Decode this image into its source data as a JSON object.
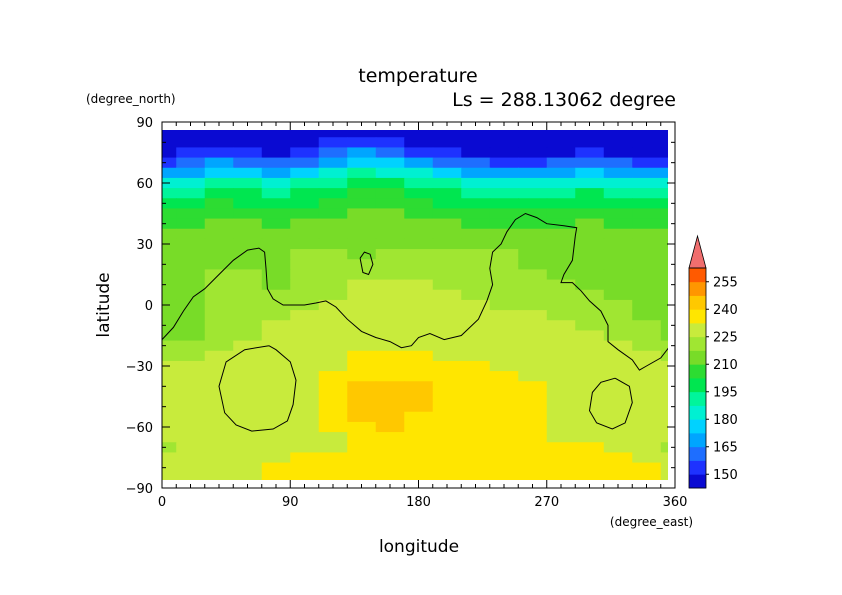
{
  "chart_data": {
    "type": "heatmap",
    "title": "temperature",
    "subtitle": "Ls = 288.13062 degree",
    "xlabel": "longitude",
    "ylabel": "latitude",
    "x_unit": "(degree_east)",
    "y_unit": "(degree_north)",
    "xlim": [
      0,
      360
    ],
    "ylim": [
      -90,
      90
    ],
    "x_ticks": [
      0,
      90,
      180,
      270,
      360
    ],
    "y_ticks": [
      90,
      60,
      30,
      0,
      -30,
      -60,
      -90
    ],
    "grid": false,
    "colorbar": {
      "levels": [
        142.5,
        150,
        157.5,
        165,
        172.5,
        180,
        187.5,
        195,
        202.5,
        210,
        217.5,
        225,
        232.5,
        240,
        247.5,
        255,
        262.5
      ],
      "tick_labels": [
        150,
        165,
        180,
        195,
        210,
        225,
        240,
        255
      ],
      "colors": [
        "#0a0ad2",
        "#1e32ff",
        "#1e6eff",
        "#00a5ff",
        "#00d2ff",
        "#00f0d2",
        "#00f59b",
        "#00e650",
        "#2ddc32",
        "#78dc28",
        "#a0e632",
        "#c8eb3c",
        "#ffe600",
        "#ffc800",
        "#ff9600",
        "#ff5a00",
        "#ff2800"
      ],
      "over_color": "#f06e6e"
    },
    "lat_rows": [
      85,
      80,
      75,
      70,
      65,
      60,
      55,
      50,
      45,
      40,
      35,
      30,
      25,
      20,
      15,
      10,
      5,
      0,
      -5,
      -10,
      -15,
      -20,
      -25,
      -30,
      -35,
      -40,
      -45,
      -50,
      -55,
      -60,
      -65,
      -70,
      -75,
      -80,
      -85
    ],
    "lon_cols": [
      0,
      20,
      40,
      60,
      80,
      100,
      120,
      140,
      160,
      180,
      200,
      220,
      240,
      260,
      280,
      300,
      320,
      340,
      360
    ],
    "values": [
      [
        143,
        143,
        143,
        143,
        143,
        143,
        143,
        143,
        143,
        143,
        143,
        143,
        143,
        143,
        143,
        143,
        143,
        143,
        143
      ],
      [
        143,
        143,
        143,
        143,
        143,
        143,
        150,
        152,
        150,
        143,
        143,
        143,
        143,
        143,
        143,
        143,
        143,
        143,
        143
      ],
      [
        146,
        150,
        153,
        150,
        146,
        150,
        158,
        165,
        163,
        155,
        150,
        146,
        143,
        143,
        146,
        150,
        146,
        143,
        146
      ],
      [
        155,
        160,
        165,
        163,
        158,
        163,
        170,
        178,
        175,
        168,
        162,
        158,
        155,
        155,
        158,
        162,
        158,
        155,
        155
      ],
      [
        168,
        172,
        178,
        175,
        170,
        175,
        182,
        188,
        186,
        180,
        175,
        170,
        168,
        168,
        170,
        175,
        172,
        168,
        168
      ],
      [
        180,
        185,
        190,
        188,
        183,
        188,
        194,
        198,
        196,
        192,
        188,
        184,
        180,
        180,
        183,
        187,
        184,
        180,
        180
      ],
      [
        190,
        194,
        198,
        196,
        192,
        196,
        200,
        204,
        203,
        200,
        196,
        193,
        190,
        190,
        192,
        196,
        194,
        190,
        190
      ],
      [
        198,
        200,
        204,
        202,
        199,
        202,
        205,
        208,
        207,
        205,
        202,
        200,
        198,
        198,
        200,
        202,
        200,
        198,
        198
      ],
      [
        203,
        205,
        207,
        206,
        204,
        206,
        208,
        210,
        210,
        208,
        206,
        205,
        203,
        203,
        205,
        206,
        205,
        203,
        203
      ],
      [
        208,
        209,
        211,
        210,
        209,
        210,
        212,
        213,
        213,
        212,
        210,
        209,
        208,
        208,
        209,
        210,
        209,
        208,
        208
      ],
      [
        211,
        212,
        213,
        213,
        212,
        213,
        214,
        215,
        215,
        214,
        213,
        212,
        211,
        211,
        212,
        213,
        212,
        211,
        211
      ],
      [
        213,
        214,
        215,
        215,
        214,
        215,
        216,
        217,
        217,
        216,
        215,
        214,
        213,
        213,
        214,
        215,
        214,
        213,
        213
      ],
      [
        215,
        215,
        216,
        216,
        215,
        219,
        220,
        216,
        222,
        221,
        220,
        219,
        218,
        215,
        215,
        216,
        215,
        215,
        215
      ],
      [
        215,
        215,
        216,
        216,
        215,
        219,
        221,
        222,
        223,
        223,
        222,
        221,
        220,
        216,
        215,
        216,
        215,
        215,
        215
      ],
      [
        215,
        216,
        218,
        219,
        216,
        219,
        222,
        224,
        224,
        224,
        223,
        222,
        221,
        218,
        216,
        216,
        215,
        215,
        215
      ],
      [
        214,
        216,
        220,
        223,
        217,
        220,
        223,
        225,
        225,
        225,
        224,
        223,
        222,
        220,
        218,
        217,
        216,
        215,
        214
      ],
      [
        214,
        216,
        220,
        224,
        219,
        221,
        224,
        226,
        226,
        226,
        225,
        224,
        223,
        222,
        220,
        218,
        217,
        216,
        214
      ],
      [
        213,
        216,
        220,
        224,
        222,
        223,
        226,
        227,
        227,
        227,
        226,
        225,
        224,
        224,
        222,
        220,
        218,
        217,
        213
      ],
      [
        213,
        215,
        220,
        224,
        224,
        225,
        227,
        228,
        228,
        228,
        227,
        226,
        225,
        225,
        224,
        222,
        219,
        217,
        213
      ],
      [
        214,
        215,
        219,
        224,
        225,
        226,
        228,
        229,
        229,
        229,
        228,
        227,
        226,
        226,
        225,
        224,
        221,
        218,
        214
      ],
      [
        216,
        217,
        222,
        224,
        226,
        227,
        228,
        230,
        230,
        230,
        229,
        228,
        228,
        227,
        226,
        225,
        223,
        220,
        216
      ],
      [
        219,
        221,
        224,
        226,
        227,
        228,
        230,
        231,
        231,
        231,
        230,
        230,
        229,
        229,
        228,
        227,
        225,
        223,
        219
      ],
      [
        222,
        223,
        225,
        227,
        228,
        229,
        231,
        233,
        233,
        233,
        232,
        231,
        230,
        230,
        229,
        228,
        227,
        225,
        222
      ],
      [
        225,
        225,
        226,
        227,
        228,
        229,
        232,
        235,
        236,
        236,
        235,
        233,
        232,
        231,
        230,
        229,
        228,
        227,
        225
      ],
      [
        226,
        226,
        227,
        227,
        228,
        229,
        234,
        238,
        239,
        239,
        237,
        234,
        233,
        232,
        231,
        230,
        229,
        228,
        226
      ],
      [
        227,
        227,
        227,
        227,
        228,
        230,
        236,
        240,
        241,
        241,
        239,
        235,
        234,
        233,
        232,
        231,
        230,
        229,
        227
      ],
      [
        227,
        227,
        227,
        227,
        228,
        230,
        238,
        242,
        242,
        241,
        238,
        235,
        234,
        233,
        232,
        231,
        230,
        229,
        227
      ],
      [
        227,
        227,
        227,
        227,
        228,
        231,
        239,
        242,
        242,
        240,
        237,
        235,
        234,
        233,
        232,
        231,
        230,
        229,
        227
      ],
      [
        227,
        227,
        227,
        227,
        228,
        231,
        235,
        241,
        241,
        239,
        236,
        235,
        234,
        233,
        232,
        231,
        230,
        229,
        227
      ],
      [
        226,
        227,
        227,
        227,
        228,
        230,
        233,
        236,
        240,
        237,
        235,
        234,
        234,
        233,
        232,
        231,
        230,
        229,
        226
      ],
      [
        225,
        226,
        227,
        228,
        229,
        230,
        232,
        234,
        236,
        235,
        234,
        234,
        234,
        233,
        232,
        232,
        231,
        230,
        225
      ],
      [
        224,
        226,
        228,
        229,
        230,
        231,
        232,
        233,
        234,
        234,
        234,
        234,
        234,
        234,
        233,
        233,
        232,
        231,
        224
      ],
      [
        225,
        228,
        230,
        231,
        232,
        233,
        233,
        234,
        234,
        234,
        235,
        236,
        234,
        234,
        234,
        234,
        233,
        232,
        225
      ],
      [
        226,
        229,
        231,
        232,
        233,
        234,
        234,
        234,
        234,
        235,
        235,
        235,
        235,
        235,
        234,
        234,
        234,
        233,
        226
      ],
      [
        226,
        229,
        231,
        232,
        233,
        234,
        234,
        234,
        234,
        235,
        235,
        235,
        235,
        235,
        234,
        234,
        234,
        233,
        226
      ]
    ],
    "contours": [
      [
        [
          0,
          -17
        ],
        [
          8,
          -11
        ],
        [
          15,
          -3
        ],
        [
          22,
          4
        ],
        [
          30,
          8
        ],
        [
          40,
          15
        ],
        [
          50,
          22
        ],
        [
          60,
          27
        ],
        [
          68,
          28
        ],
        [
          72,
          26
        ],
        [
          73,
          18
        ],
        [
          74,
          8
        ],
        [
          78,
          3
        ],
        [
          85,
          0
        ],
        [
          100,
          0
        ],
        [
          108,
          1
        ],
        [
          115,
          2
        ],
        [
          122,
          -1
        ],
        [
          130,
          -7
        ],
        [
          140,
          -13
        ],
        [
          150,
          -16
        ],
        [
          160,
          -18
        ],
        [
          168,
          -21
        ],
        [
          175,
          -20
        ],
        [
          180,
          -16
        ],
        [
          188,
          -14
        ],
        [
          198,
          -17
        ],
        [
          210,
          -15
        ],
        [
          222,
          -7
        ],
        [
          228,
          2
        ],
        [
          232,
          10
        ],
        [
          230,
          18
        ],
        [
          232,
          26
        ],
        [
          238,
          30
        ],
        [
          242,
          36
        ],
        [
          248,
          42
        ],
        [
          255,
          45
        ],
        [
          263,
          43
        ],
        [
          270,
          40
        ],
        [
          282,
          39
        ],
        [
          291,
          38
        ],
        [
          290,
          34
        ],
        [
          288,
          22
        ],
        [
          282,
          15
        ],
        [
          280,
          11
        ],
        [
          288,
          11
        ],
        [
          294,
          7
        ],
        [
          300,
          2
        ],
        [
          308,
          -3
        ],
        [
          313,
          -10
        ],
        [
          313,
          -18
        ],
        [
          320,
          -22
        ],
        [
          330,
          -27
        ],
        [
          335,
          -32
        ],
        [
          340,
          -30
        ],
        [
          350,
          -26
        ],
        [
          360,
          -17
        ]
      ],
      [
        [
          139,
          23
        ],
        [
          142,
          26
        ],
        [
          146,
          25
        ],
        [
          148,
          20
        ],
        [
          145,
          15
        ],
        [
          141,
          16
        ],
        [
          139,
          23
        ]
      ],
      [
        [
          75,
          -20
        ],
        [
          58,
          -22
        ],
        [
          45,
          -28
        ],
        [
          40,
          -40
        ],
        [
          44,
          -53
        ],
        [
          52,
          -59
        ],
        [
          63,
          -62
        ],
        [
          78,
          -61
        ],
        [
          88,
          -57
        ],
        [
          92,
          -49
        ],
        [
          94,
          -37
        ],
        [
          90,
          -28
        ],
        [
          80,
          -22
        ],
        [
          75,
          -20
        ]
      ],
      [
        [
          318,
          -36
        ],
        [
          308,
          -38
        ],
        [
          302,
          -43
        ],
        [
          300,
          -52
        ],
        [
          305,
          -58
        ],
        [
          316,
          -61
        ],
        [
          325,
          -58
        ],
        [
          330,
          -48
        ],
        [
          328,
          -40
        ],
        [
          318,
          -36
        ]
      ]
    ]
  }
}
